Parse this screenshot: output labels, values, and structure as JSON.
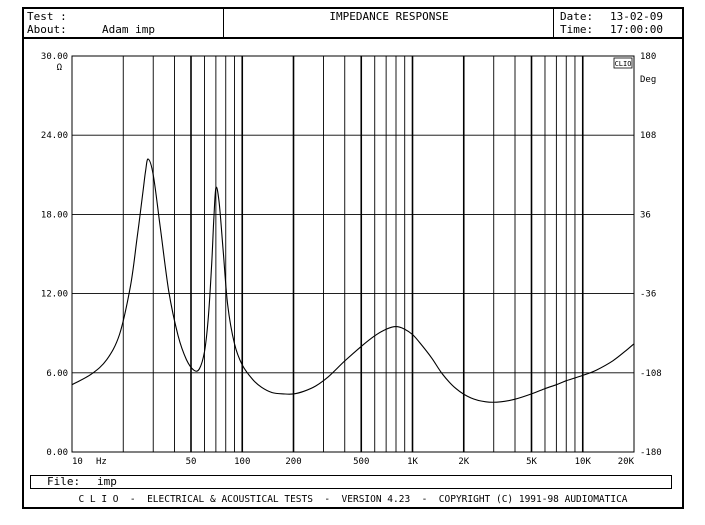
{
  "header": {
    "test_label": "Test :",
    "about_label": "About:",
    "about_value": "Adam imp",
    "title": "IMPEDANCE RESPONSE",
    "date_label": "Date:",
    "date_value": "13-02-09",
    "time_label": "Time:",
    "time_value": "17:00:00"
  },
  "file": {
    "label": "File:",
    "value": "imp"
  },
  "footer": {
    "text": "C L I O  -  ELECTRICAL & ACOUSTICAL TESTS  -  VERSION 4.23  -  COPYRIGHT (C) 1991-98 AUDIOMATICA"
  },
  "corner_badge": "CLIO",
  "chart_data": {
    "type": "line",
    "title": "IMPEDANCE RESPONSE",
    "xscale": "log",
    "xlim": [
      10,
      20000
    ],
    "ylim": [
      0,
      30
    ],
    "y2lim": [
      -180,
      180
    ],
    "ylabel": "Ω",
    "y2label": "Deg",
    "xunit": "Hz",
    "grid": true,
    "x_ticks": [
      {
        "value": 10,
        "label": "10"
      },
      {
        "value": 50,
        "label": "50"
      },
      {
        "value": 100,
        "label": "100"
      },
      {
        "value": 200,
        "label": "200"
      },
      {
        "value": 500,
        "label": "500"
      },
      {
        "value": 1000,
        "label": "1K"
      },
      {
        "value": 2000,
        "label": "2K"
      },
      {
        "value": 5000,
        "label": "5K"
      },
      {
        "value": 10000,
        "label": "10K"
      },
      {
        "value": 20000,
        "label": "20K"
      }
    ],
    "y_ticks": [
      {
        "value": 0,
        "label": "0.00"
      },
      {
        "value": 6,
        "label": "6.00"
      },
      {
        "value": 12,
        "label": "12.00"
      },
      {
        "value": 18,
        "label": "18.00"
      },
      {
        "value": 24,
        "label": "24.00"
      },
      {
        "value": 30,
        "label": "30.00"
      }
    ],
    "y2_ticks": [
      {
        "value": -180,
        "label": "-180"
      },
      {
        "value": -108,
        "label": "-108"
      },
      {
        "value": -36,
        "label": "-36"
      },
      {
        "value": 36,
        "label": "36"
      },
      {
        "value": 108,
        "label": "108"
      },
      {
        "value": 180,
        "label": "180"
      }
    ],
    "series": [
      {
        "x": [
          10,
          13,
          16,
          19,
          22,
          24,
          26,
          27,
          28,
          30,
          33,
          37,
          42,
          47,
          52,
          56,
          60,
          63,
          66,
          68,
          70,
          73,
          77,
          82,
          90,
          100,
          115,
          130,
          150,
          175,
          200,
          230,
          270,
          320,
          400,
          500,
          600,
          700,
          800,
          900,
          1000,
          1100,
          1300,
          1500,
          1800,
          2200,
          2700,
          3300,
          4000,
          5000,
          6000,
          7000,
          8000,
          10000,
          12000,
          15000,
          18000,
          20000
        ],
        "y": [
          5.1,
          5.9,
          7.0,
          8.9,
          12.5,
          16.0,
          19.5,
          21.2,
          22.2,
          21.0,
          17.0,
          12.2,
          8.8,
          7.0,
          6.2,
          6.3,
          7.6,
          10.0,
          14.0,
          17.5,
          20.0,
          19.0,
          15.5,
          11.2,
          8.2,
          6.6,
          5.5,
          4.9,
          4.5,
          4.4,
          4.4,
          4.6,
          5.0,
          5.7,
          6.9,
          8.0,
          8.8,
          9.3,
          9.5,
          9.3,
          8.9,
          8.3,
          7.1,
          5.9,
          4.8,
          4.1,
          3.8,
          3.8,
          4.0,
          4.4,
          4.8,
          5.1,
          5.4,
          5.8,
          6.2,
          6.9,
          7.7,
          8.2
        ]
      }
    ]
  }
}
